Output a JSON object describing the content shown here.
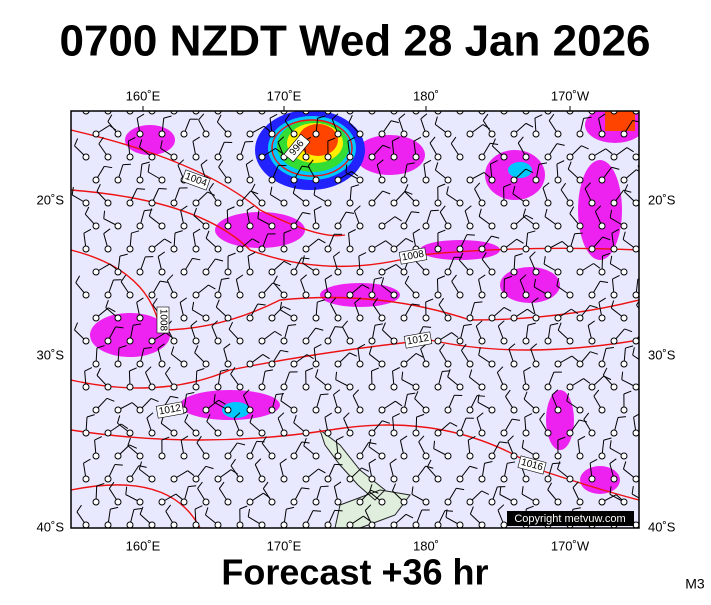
{
  "header": {
    "title": "0700 NZDT Wed 28 Jan 2026"
  },
  "map": {
    "lon_labels": [
      "160˚E",
      "170˚E",
      "180˚",
      "170˚W"
    ],
    "lat_labels": [
      "20˚S",
      "30˚S",
      "40˚S"
    ],
    "isobar_labels": [
      "996",
      "1004",
      "1008",
      "1008",
      "1012",
      "1012",
      "1016"
    ],
    "copyright": "Copyright metvuw.com"
  },
  "footer": {
    "forecast": "Forecast +36 hr",
    "model": "M3"
  }
}
